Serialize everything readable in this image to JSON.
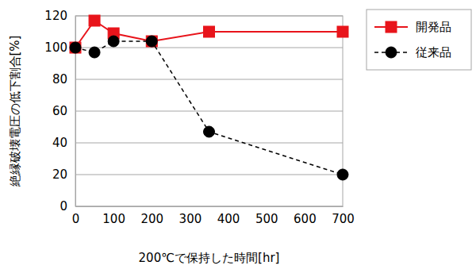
{
  "chart_data": {
    "type": "line",
    "x_label": "200℃で保持した時間[hr]",
    "y_label": "絶縁破壊電圧の低下割合[%]",
    "x": [
      0,
      50,
      100,
      200,
      350,
      700
    ],
    "xlim": [
      0,
      700
    ],
    "xticks": [
      0,
      100,
      200,
      300,
      400,
      500,
      600,
      700
    ],
    "ylim": [
      0,
      120
    ],
    "yticks": [
      0,
      20,
      40,
      60,
      80,
      100,
      120
    ],
    "grid": true,
    "legend": "right",
    "series": [
      {
        "name": "開発品",
        "color": "#e8141b",
        "marker": "square",
        "line_style": "solid",
        "values": [
          100,
          117,
          109,
          104,
          110,
          110
        ]
      },
      {
        "name": "従来品",
        "color": "#000000",
        "marker": "circle",
        "line_style": "dashed",
        "values": [
          100,
          97,
          104,
          104,
          47,
          20
        ]
      }
    ]
  }
}
